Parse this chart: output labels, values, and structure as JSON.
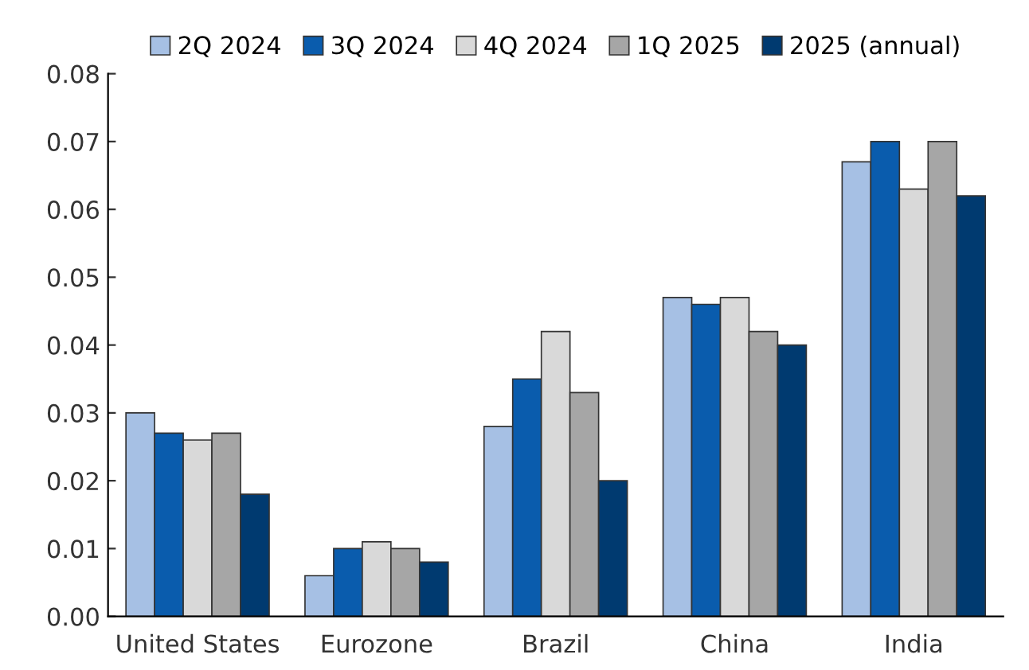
{
  "chart_data": {
    "type": "bar",
    "categories": [
      "United States",
      "Eurozone",
      "Brazil",
      "China",
      "India"
    ],
    "series": [
      {
        "name": "2Q 2024",
        "color": "#a6c0e4",
        "values": [
          0.03,
          0.006,
          0.028,
          0.047,
          0.067
        ]
      },
      {
        "name": "3Q 2024",
        "color": "#0a5cad",
        "values": [
          0.027,
          0.01,
          0.035,
          0.046,
          0.07
        ]
      },
      {
        "name": "4Q 2024",
        "color": "#d9d9d9",
        "values": [
          0.026,
          0.011,
          0.042,
          0.047,
          0.063
        ]
      },
      {
        "name": "1Q 2025",
        "color": "#a6a6a6",
        "values": [
          0.027,
          0.01,
          0.033,
          0.042,
          0.07
        ]
      },
      {
        "name": "2025 (annual)",
        "color": "#003a70",
        "values": [
          0.018,
          0.008,
          0.02,
          0.04,
          0.062
        ]
      }
    ],
    "ylim": [
      0,
      0.08
    ],
    "yticks": [
      {
        "value": 0,
        "label": "0.00"
      },
      {
        "value": 0.01,
        "label": "0.01"
      },
      {
        "value": 0.02,
        "label": "0.02"
      },
      {
        "value": 0.03,
        "label": "0.03"
      },
      {
        "value": 0.04,
        "label": "0.04"
      },
      {
        "value": 0.05,
        "label": "0.05"
      },
      {
        "value": 0.06,
        "label": "0.06"
      },
      {
        "value": 0.07,
        "label": "0.07"
      },
      {
        "value": 0.08,
        "label": "0.08"
      }
    ],
    "grid": false,
    "legend": "top"
  }
}
